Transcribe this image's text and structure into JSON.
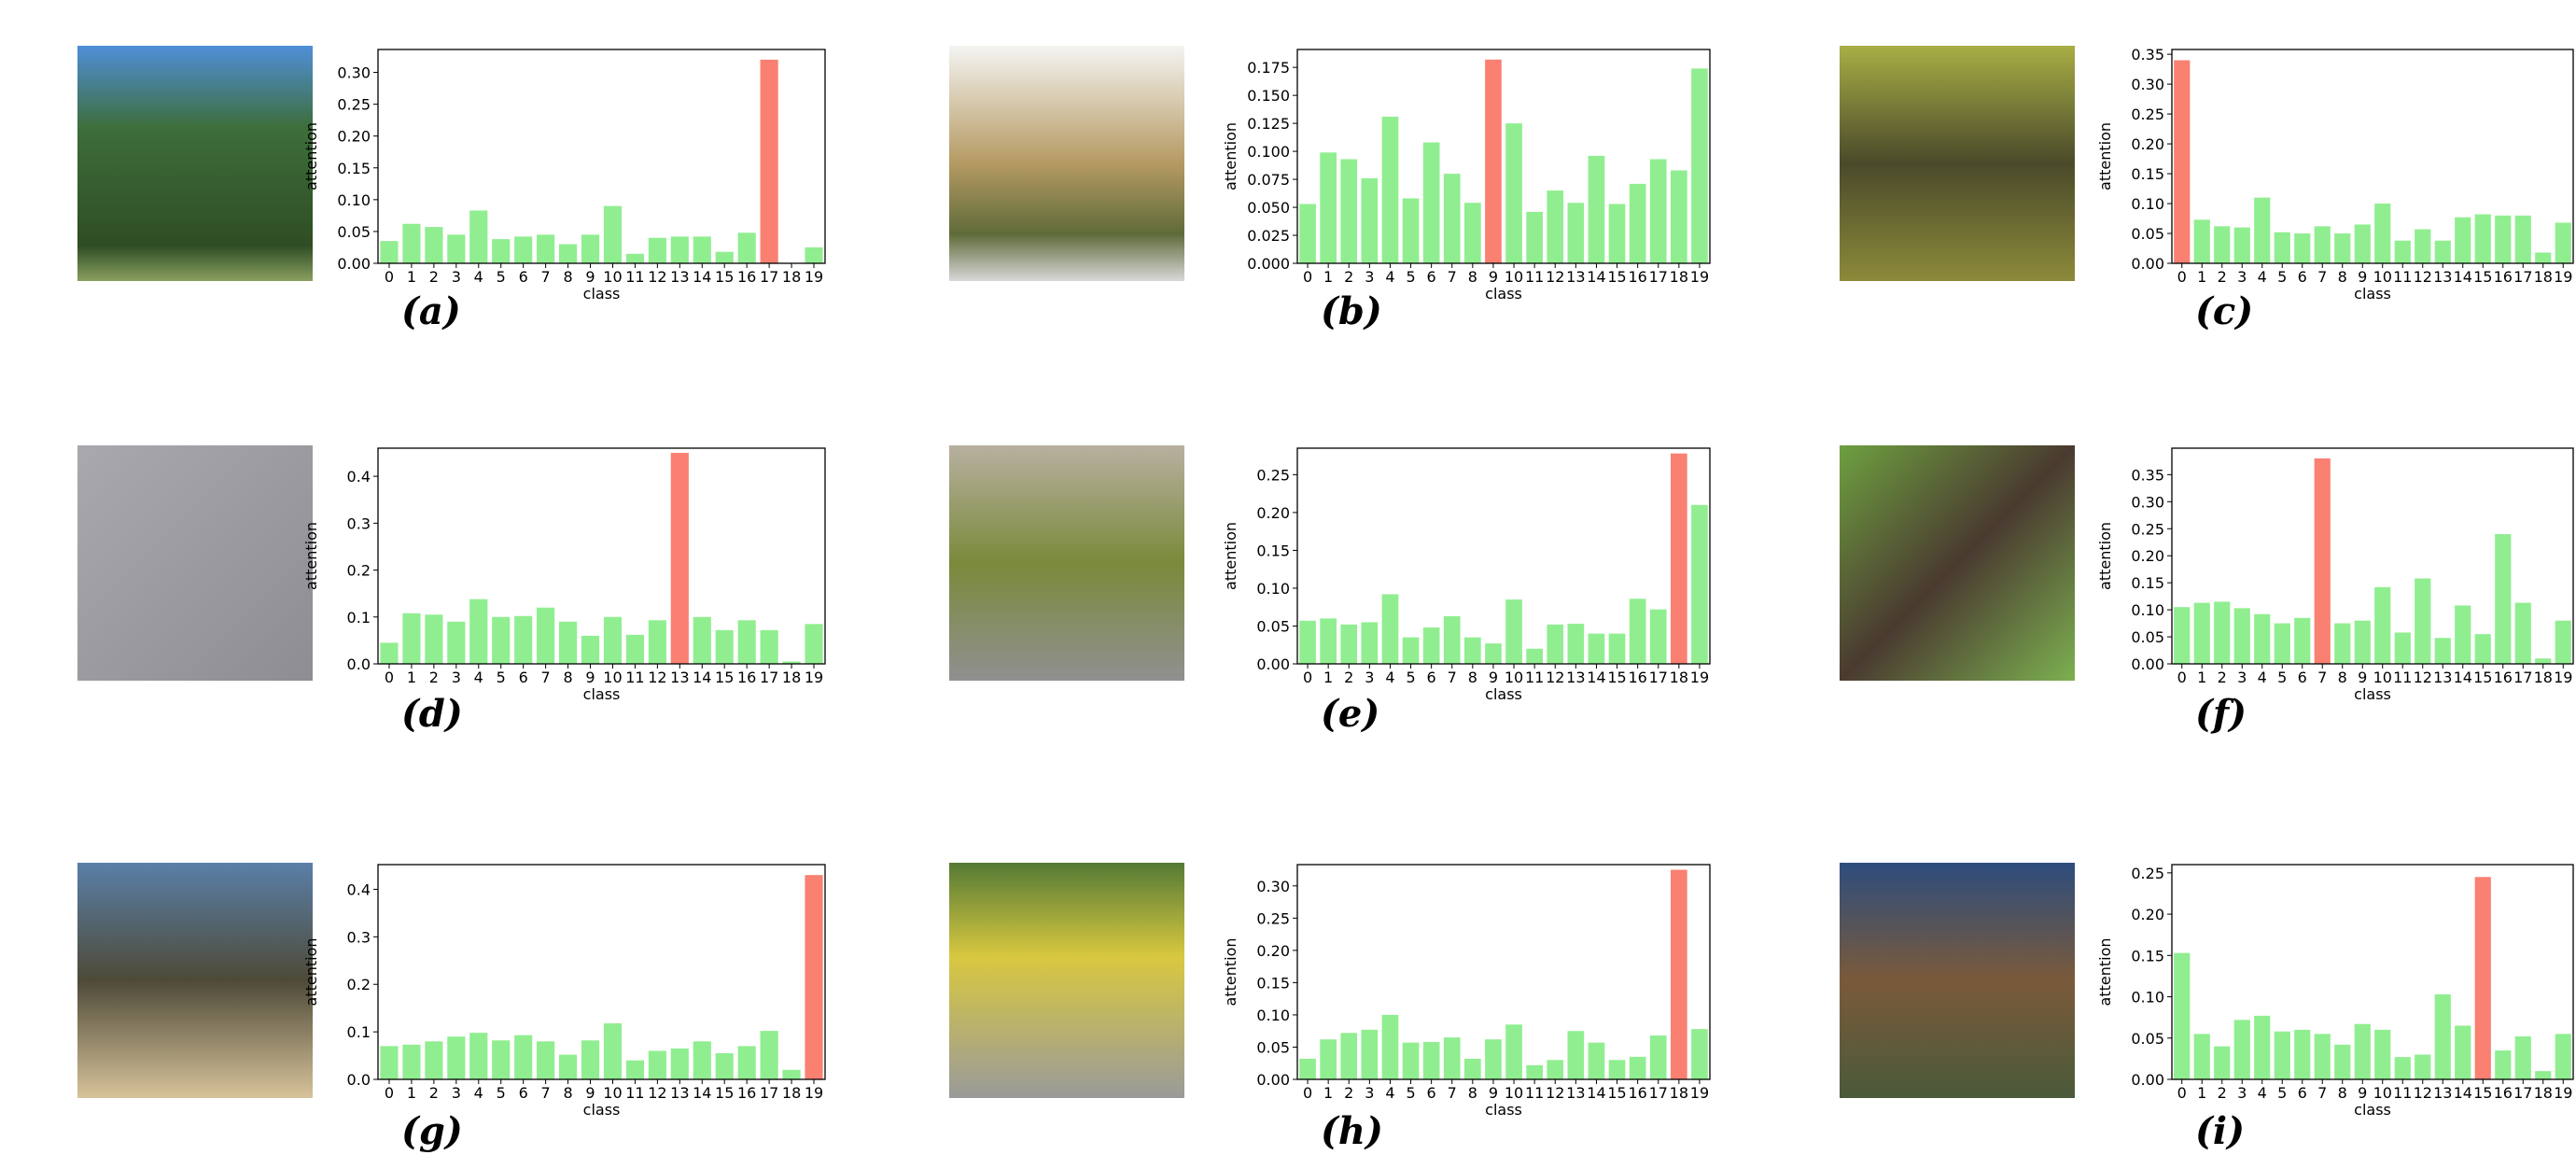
{
  "chart_data": [
    {
      "type": "bar",
      "label": "(a)",
      "xlabel": "class",
      "ylabel": "attention",
      "categories": [
        "0",
        "1",
        "2",
        "3",
        "4",
        "5",
        "6",
        "7",
        "8",
        "9",
        "10",
        "11",
        "12",
        "13",
        "14",
        "15",
        "16",
        "17",
        "18",
        "19"
      ],
      "values": [
        0.035,
        0.062,
        0.057,
        0.045,
        0.083,
        0.038,
        0.042,
        0.045,
        0.03,
        0.045,
        0.09,
        0.015,
        0.04,
        0.042,
        0.042,
        0.018,
        0.048,
        0.32,
        0,
        0.025
      ],
      "colors": [
        "#90ee90",
        "#90ee90",
        "#90ee90",
        "#90ee90",
        "#90ee90",
        "#90ee90",
        "#90ee90",
        "#90ee90",
        "#90ee90",
        "#90ee90",
        "#90ee90",
        "#90ee90",
        "#90ee90",
        "#90ee90",
        "#90ee90",
        "#90ee90",
        "#90ee90",
        "#fa8072",
        "#90ee90",
        "#90ee90"
      ],
      "ylim": [
        0,
        0.336
      ],
      "yticks": [
        {
          "value": 0,
          "label": "0.00"
        },
        {
          "value": 0.05,
          "label": "0.05"
        },
        {
          "value": 0.1,
          "label": "0.10"
        },
        {
          "value": 0.15,
          "label": "0.15"
        },
        {
          "value": 0.2,
          "label": "0.20"
        },
        {
          "value": 0.25,
          "label": "0.25"
        },
        {
          "value": 0.3,
          "label": "0.30"
        }
      ]
    },
    {
      "type": "bar",
      "label": "(b)",
      "xlabel": "class",
      "ylabel": "attention",
      "categories": [
        "0",
        "1",
        "2",
        "3",
        "4",
        "5",
        "6",
        "7",
        "8",
        "9",
        "10",
        "11",
        "12",
        "13",
        "14",
        "15",
        "16",
        "17",
        "18",
        "19"
      ],
      "values": [
        0.053,
        0.099,
        0.093,
        0.076,
        0.131,
        0.058,
        0.108,
        0.08,
        0.054,
        0.182,
        0.125,
        0.046,
        0.065,
        0.054,
        0.096,
        0.053,
        0.071,
        0.093,
        0.083,
        0.174
      ],
      "colors": [
        "#90ee90",
        "#90ee90",
        "#90ee90",
        "#90ee90",
        "#90ee90",
        "#90ee90",
        "#90ee90",
        "#90ee90",
        "#90ee90",
        "#fa8072",
        "#90ee90",
        "#90ee90",
        "#90ee90",
        "#90ee90",
        "#90ee90",
        "#90ee90",
        "#90ee90",
        "#90ee90",
        "#90ee90",
        "#90ee90"
      ],
      "ylim": [
        0,
        0.191
      ],
      "yticks": [
        {
          "value": 0,
          "label": "0.000"
        },
        {
          "value": 0.025,
          "label": "0.025"
        },
        {
          "value": 0.05,
          "label": "0.050"
        },
        {
          "value": 0.075,
          "label": "0.075"
        },
        {
          "value": 0.1,
          "label": "0.100"
        },
        {
          "value": 0.125,
          "label": "0.125"
        },
        {
          "value": 0.15,
          "label": "0.150"
        },
        {
          "value": 0.175,
          "label": "0.175"
        }
      ]
    },
    {
      "type": "bar",
      "label": "(c)",
      "xlabel": "class",
      "ylabel": "attention",
      "categories": [
        "0",
        "1",
        "2",
        "3",
        "4",
        "5",
        "6",
        "7",
        "8",
        "9",
        "10",
        "11",
        "12",
        "13",
        "14",
        "15",
        "16",
        "17",
        "18",
        "19"
      ],
      "values": [
        0.34,
        0.073,
        0.062,
        0.06,
        0.11,
        0.052,
        0.05,
        0.062,
        0.05,
        0.065,
        0.1,
        0.038,
        0.057,
        0.038,
        0.077,
        0.082,
        0.08,
        0.08,
        0.018,
        0.068
      ],
      "colors": [
        "#fa8072",
        "#90ee90",
        "#90ee90",
        "#90ee90",
        "#90ee90",
        "#90ee90",
        "#90ee90",
        "#90ee90",
        "#90ee90",
        "#90ee90",
        "#90ee90",
        "#90ee90",
        "#90ee90",
        "#90ee90",
        "#90ee90",
        "#90ee90",
        "#90ee90",
        "#90ee90",
        "#90ee90",
        "#90ee90"
      ],
      "ylim": [
        0,
        0.358
      ],
      "yticks": [
        {
          "value": 0,
          "label": "0.00"
        },
        {
          "value": 0.05,
          "label": "0.05"
        },
        {
          "value": 0.1,
          "label": "0.10"
        },
        {
          "value": 0.15,
          "label": "0.15"
        },
        {
          "value": 0.2,
          "label": "0.20"
        },
        {
          "value": 0.25,
          "label": "0.25"
        },
        {
          "value": 0.3,
          "label": "0.30"
        },
        {
          "value": 0.35,
          "label": "0.35"
        }
      ]
    },
    {
      "type": "bar",
      "label": "(d)",
      "xlabel": "class",
      "ylabel": "attention",
      "categories": [
        "0",
        "1",
        "2",
        "3",
        "4",
        "5",
        "6",
        "7",
        "8",
        "9",
        "10",
        "11",
        "12",
        "13",
        "14",
        "15",
        "16",
        "17",
        "18",
        "19"
      ],
      "values": [
        0.045,
        0.108,
        0.105,
        0.09,
        0.138,
        0.1,
        0.102,
        0.12,
        0.09,
        0.06,
        0.1,
        0.062,
        0.093,
        0.45,
        0.1,
        0.072,
        0.093,
        0.072,
        0.005,
        0.085
      ],
      "colors": [
        "#90ee90",
        "#90ee90",
        "#90ee90",
        "#90ee90",
        "#90ee90",
        "#90ee90",
        "#90ee90",
        "#90ee90",
        "#90ee90",
        "#90ee90",
        "#90ee90",
        "#90ee90",
        "#90ee90",
        "#fa8072",
        "#90ee90",
        "#90ee90",
        "#90ee90",
        "#90ee90",
        "#90ee90",
        "#90ee90"
      ],
      "ylim": [
        0,
        0.46
      ],
      "yticks": [
        {
          "value": 0,
          "label": "0.0"
        },
        {
          "value": 0.1,
          "label": "0.1"
        },
        {
          "value": 0.2,
          "label": "0.2"
        },
        {
          "value": 0.3,
          "label": "0.3"
        },
        {
          "value": 0.4,
          "label": "0.4"
        }
      ]
    },
    {
      "type": "bar",
      "label": "(e)",
      "xlabel": "class",
      "ylabel": "attention",
      "categories": [
        "0",
        "1",
        "2",
        "3",
        "4",
        "5",
        "6",
        "7",
        "8",
        "9",
        "10",
        "11",
        "12",
        "13",
        "14",
        "15",
        "16",
        "17",
        "18",
        "19"
      ],
      "values": [
        0.057,
        0.06,
        0.052,
        0.055,
        0.092,
        0.035,
        0.048,
        0.063,
        0.035,
        0.027,
        0.085,
        0.02,
        0.052,
        0.053,
        0.04,
        0.04,
        0.086,
        0.072,
        0.278,
        0.21
      ],
      "colors": [
        "#90ee90",
        "#90ee90",
        "#90ee90",
        "#90ee90",
        "#90ee90",
        "#90ee90",
        "#90ee90",
        "#90ee90",
        "#90ee90",
        "#90ee90",
        "#90ee90",
        "#90ee90",
        "#90ee90",
        "#90ee90",
        "#90ee90",
        "#90ee90",
        "#90ee90",
        "#90ee90",
        "#fa8072",
        "#90ee90"
      ],
      "ylim": [
        0,
        0.285
      ],
      "yticks": [
        {
          "value": 0,
          "label": "0.00"
        },
        {
          "value": 0.05,
          "label": "0.05"
        },
        {
          "value": 0.1,
          "label": "0.10"
        },
        {
          "value": 0.15,
          "label": "0.15"
        },
        {
          "value": 0.2,
          "label": "0.20"
        },
        {
          "value": 0.25,
          "label": "0.25"
        }
      ]
    },
    {
      "type": "bar",
      "label": "(f)",
      "xlabel": "class",
      "ylabel": "attention",
      "categories": [
        "0",
        "1",
        "2",
        "3",
        "4",
        "5",
        "6",
        "7",
        "8",
        "9",
        "10",
        "11",
        "12",
        "13",
        "14",
        "15",
        "16",
        "17",
        "18",
        "19"
      ],
      "values": [
        0.105,
        0.113,
        0.115,
        0.103,
        0.092,
        0.075,
        0.085,
        0.38,
        0.075,
        0.08,
        0.142,
        0.058,
        0.158,
        0.048,
        0.108,
        0.055,
        0.24,
        0.113,
        0.01,
        0.08
      ],
      "colors": [
        "#90ee90",
        "#90ee90",
        "#90ee90",
        "#90ee90",
        "#90ee90",
        "#90ee90",
        "#90ee90",
        "#fa8072",
        "#90ee90",
        "#90ee90",
        "#90ee90",
        "#90ee90",
        "#90ee90",
        "#90ee90",
        "#90ee90",
        "#90ee90",
        "#90ee90",
        "#90ee90",
        "#90ee90",
        "#90ee90"
      ],
      "ylim": [
        0,
        0.399
      ],
      "yticks": [
        {
          "value": 0,
          "label": "0.00"
        },
        {
          "value": 0.05,
          "label": "0.05"
        },
        {
          "value": 0.1,
          "label": "0.10"
        },
        {
          "value": 0.15,
          "label": "0.15"
        },
        {
          "value": 0.2,
          "label": "0.20"
        },
        {
          "value": 0.25,
          "label": "0.25"
        },
        {
          "value": 0.3,
          "label": "0.30"
        },
        {
          "value": 0.35,
          "label": "0.35"
        }
      ]
    },
    {
      "type": "bar",
      "label": "(g)",
      "xlabel": "class",
      "ylabel": "attention",
      "categories": [
        "0",
        "1",
        "2",
        "3",
        "4",
        "5",
        "6",
        "7",
        "8",
        "9",
        "10",
        "11",
        "12",
        "13",
        "14",
        "15",
        "16",
        "17",
        "18",
        "19"
      ],
      "values": [
        0.07,
        0.073,
        0.08,
        0.09,
        0.098,
        0.082,
        0.093,
        0.08,
        0.052,
        0.082,
        0.118,
        0.04,
        0.06,
        0.065,
        0.08,
        0.055,
        0.07,
        0.102,
        0.02,
        0.43
      ],
      "colors": [
        "#90ee90",
        "#90ee90",
        "#90ee90",
        "#90ee90",
        "#90ee90",
        "#90ee90",
        "#90ee90",
        "#90ee90",
        "#90ee90",
        "#90ee90",
        "#90ee90",
        "#90ee90",
        "#90ee90",
        "#90ee90",
        "#90ee90",
        "#90ee90",
        "#90ee90",
        "#90ee90",
        "#90ee90",
        "#fa8072"
      ],
      "ylim": [
        0,
        0.452
      ],
      "yticks": [
        {
          "value": 0,
          "label": "0.0"
        },
        {
          "value": 0.1,
          "label": "0.1"
        },
        {
          "value": 0.2,
          "label": "0.2"
        },
        {
          "value": 0.3,
          "label": "0.3"
        },
        {
          "value": 0.4,
          "label": "0.4"
        }
      ]
    },
    {
      "type": "bar",
      "label": "(h)",
      "xlabel": "class",
      "ylabel": "attention",
      "categories": [
        "0",
        "1",
        "2",
        "3",
        "4",
        "5",
        "6",
        "7",
        "8",
        "9",
        "10",
        "11",
        "12",
        "13",
        "14",
        "15",
        "16",
        "17",
        "18",
        "19"
      ],
      "values": [
        0.032,
        0.062,
        0.072,
        0.077,
        0.1,
        0.057,
        0.058,
        0.065,
        0.032,
        0.062,
        0.085,
        0.022,
        0.03,
        0.075,
        0.057,
        0.03,
        0.035,
        0.068,
        0.325,
        0.078
      ],
      "colors": [
        "#90ee90",
        "#90ee90",
        "#90ee90",
        "#90ee90",
        "#90ee90",
        "#90ee90",
        "#90ee90",
        "#90ee90",
        "#90ee90",
        "#90ee90",
        "#90ee90",
        "#90ee90",
        "#90ee90",
        "#90ee90",
        "#90ee90",
        "#90ee90",
        "#90ee90",
        "#90ee90",
        "#fa8072",
        "#90ee90"
      ],
      "ylim": [
        0,
        0.333
      ],
      "yticks": [
        {
          "value": 0,
          "label": "0.00"
        },
        {
          "value": 0.05,
          "label": "0.05"
        },
        {
          "value": 0.1,
          "label": "0.10"
        },
        {
          "value": 0.15,
          "label": "0.15"
        },
        {
          "value": 0.2,
          "label": "0.20"
        },
        {
          "value": 0.25,
          "label": "0.25"
        },
        {
          "value": 0.3,
          "label": "0.30"
        }
      ]
    },
    {
      "type": "bar",
      "label": "(i)",
      "xlabel": "class",
      "ylabel": "attention",
      "categories": [
        "0",
        "1",
        "2",
        "3",
        "4",
        "5",
        "6",
        "7",
        "8",
        "9",
        "10",
        "11",
        "12",
        "13",
        "14",
        "15",
        "16",
        "17",
        "18",
        "19"
      ],
      "values": [
        0.153,
        0.055,
        0.04,
        0.072,
        0.077,
        0.058,
        0.06,
        0.055,
        0.042,
        0.067,
        0.06,
        0.027,
        0.03,
        0.103,
        0.065,
        0.245,
        0.035,
        0.052,
        0.01,
        0.055
      ],
      "colors": [
        "#90ee90",
        "#90ee90",
        "#90ee90",
        "#90ee90",
        "#90ee90",
        "#90ee90",
        "#90ee90",
        "#90ee90",
        "#90ee90",
        "#90ee90",
        "#90ee90",
        "#90ee90",
        "#90ee90",
        "#90ee90",
        "#90ee90",
        "#fa8072",
        "#90ee90",
        "#90ee90",
        "#90ee90",
        "#90ee90"
      ],
      "ylim": [
        0,
        0.26
      ],
      "yticks": [
        {
          "value": 0,
          "label": "0.00"
        },
        {
          "value": 0.05,
          "label": "0.05"
        },
        {
          "value": 0.1,
          "label": "0.10"
        },
        {
          "value": 0.15,
          "label": "0.15"
        },
        {
          "value": 0.2,
          "label": "0.20"
        },
        {
          "value": 0.25,
          "label": "0.25"
        }
      ]
    }
  ]
}
